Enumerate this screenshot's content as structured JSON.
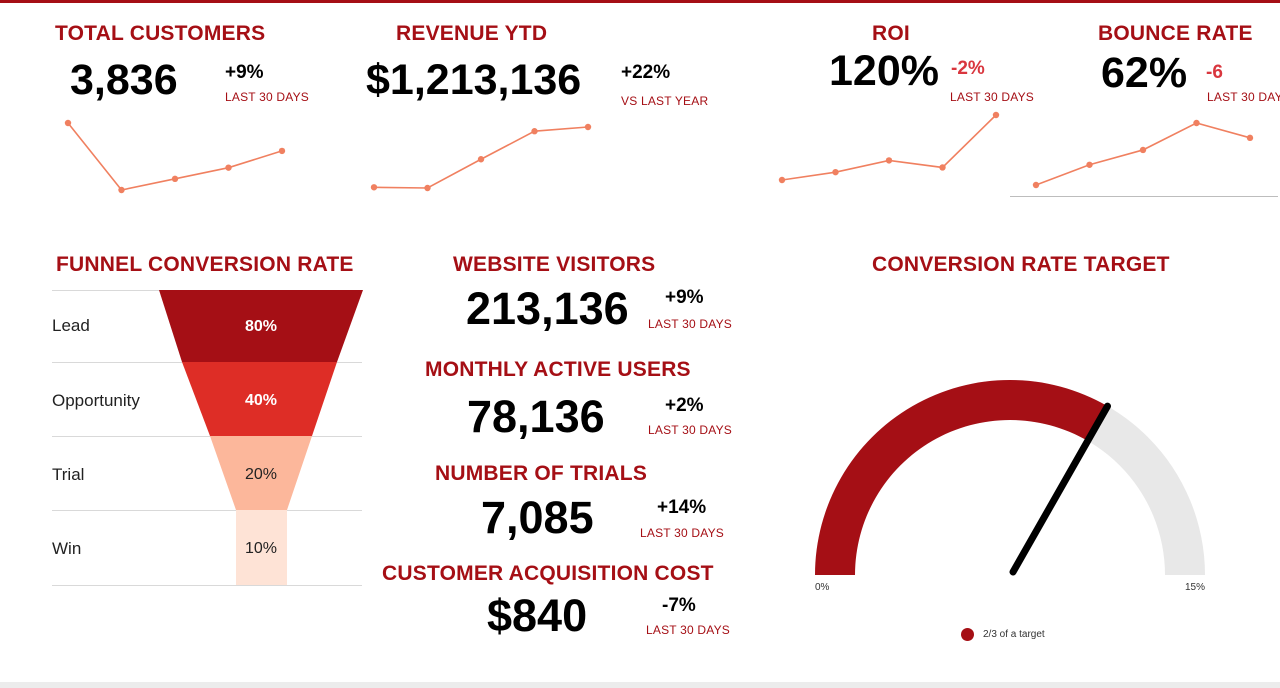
{
  "colors": {
    "accent": "#a50f15",
    "spark": "#f08060",
    "negative": "#d9363e",
    "gauge_track": "#e8e8e8"
  },
  "kpis": {
    "customers": {
      "title": "TOTAL CUSTOMERS",
      "value": "3,836",
      "delta": "+9%",
      "sub": "LAST 30 DAYS",
      "trend": [
        7,
        1,
        2,
        3,
        4.5
      ]
    },
    "revenue": {
      "title": "REVENUE YTD",
      "value": "$1,213,136",
      "delta": "+22%",
      "sub": "VS LAST YEAR",
      "trend": [
        1,
        0.95,
        3,
        5,
        5.3
      ]
    },
    "roi": {
      "title": "ROI",
      "value": "120%",
      "delta": "-2%",
      "sub": "LAST 30 DAYS",
      "trend": [
        1,
        2,
        3.5,
        2.6,
        9.3
      ]
    },
    "bounce": {
      "title": "BOUNCE RATE",
      "value": "62%",
      "delta": "-6",
      "sub": "LAST 30 DAY",
      "trend": [
        1,
        2.5,
        3.6,
        5.6,
        4.5
      ]
    }
  },
  "funnel": {
    "title": "FUNNEL CONVERSION RATE",
    "stages": [
      {
        "label": "Lead",
        "value": "80%",
        "color": "#a50f15",
        "text_color": "#ffffff"
      },
      {
        "label": "Opportunity",
        "value": "40%",
        "color": "#de2d26",
        "text_color": "#ffffff"
      },
      {
        "label": "Trial",
        "value": "20%",
        "color": "#fcb79b",
        "text_color": "#222222"
      },
      {
        "label": "Win",
        "value": "10%",
        "color": "#fee3d6",
        "text_color": "#222222"
      }
    ]
  },
  "metrics": {
    "visitors": {
      "title": "WEBSITE VISITORS",
      "value": "213,136",
      "delta": "+9%",
      "sub": "LAST 30 DAYS"
    },
    "mau": {
      "title": "MONTHLY ACTIVE USERS",
      "value": "78,136",
      "delta": "+2%",
      "sub": "LAST 30 DAYS"
    },
    "trials": {
      "title": "NUMBER OF TRIALS",
      "value": "7,085",
      "delta": "+14%",
      "sub": "LAST 30 DAYS"
    },
    "cac": {
      "title": "CUSTOMER ACQUISITION COST",
      "value": "$840",
      "delta": "-7%",
      "sub": "LAST 30 DAYS"
    }
  },
  "gauge": {
    "title": "CONVERSION RATE TARGET",
    "min_label": "0%",
    "max_label": "15%",
    "min": 0,
    "max": 15,
    "value": 10,
    "legend": "2/3 of a target"
  }
}
